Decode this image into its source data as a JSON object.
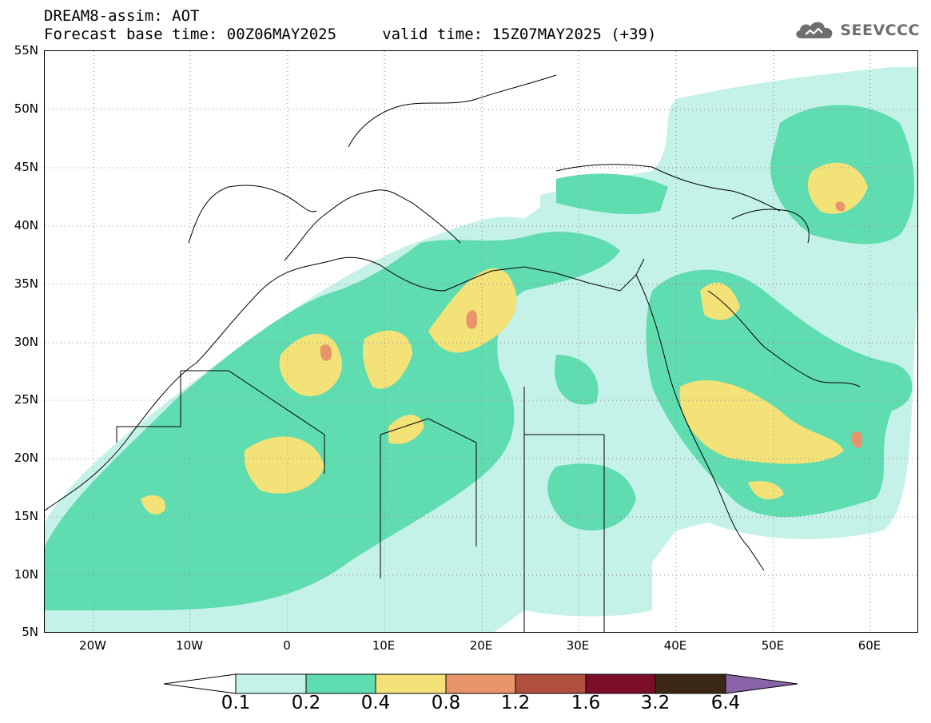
{
  "header": {
    "title": "DREAM8-assim: AOT",
    "subtitle": "Forecast base time: 00Z06MAY2025     valid time: 15Z07MAY2025 (+39)",
    "logo_text": "SEEVCCC",
    "logo_icon": "cloud-icon"
  },
  "map": {
    "lat_labels": [
      "55N",
      "50N",
      "45N",
      "40N",
      "35N",
      "30N",
      "25N",
      "20N",
      "15N",
      "10N",
      "5N"
    ],
    "lon_labels": [
      "20W",
      "10W",
      "0",
      "10E",
      "20E",
      "30E",
      "40E",
      "50E",
      "60E"
    ],
    "lat_range": [
      5,
      55
    ],
    "lon_range": [
      -25,
      65
    ],
    "grid": "dotted"
  },
  "colorbar": {
    "labels": [
      "0.1",
      "0.2",
      "0.4",
      "0.8",
      "1.2",
      "1.6",
      "3.2",
      "6.4"
    ],
    "colors": [
      "#ffffff",
      "#c4f2e8",
      "#5fdcb0",
      "#f2e277",
      "#e9946a",
      "#b04f3d",
      "#7c0d2a",
      "#3a2716",
      "#8a64a8"
    ]
  },
  "colors": {
    "aot_0_1": "#c4f2e8",
    "aot_0_2": "#5fdcb0",
    "aot_0_4": "#f2e277",
    "aot_0_8": "#e9946a",
    "logo": "#6e6e6e"
  }
}
